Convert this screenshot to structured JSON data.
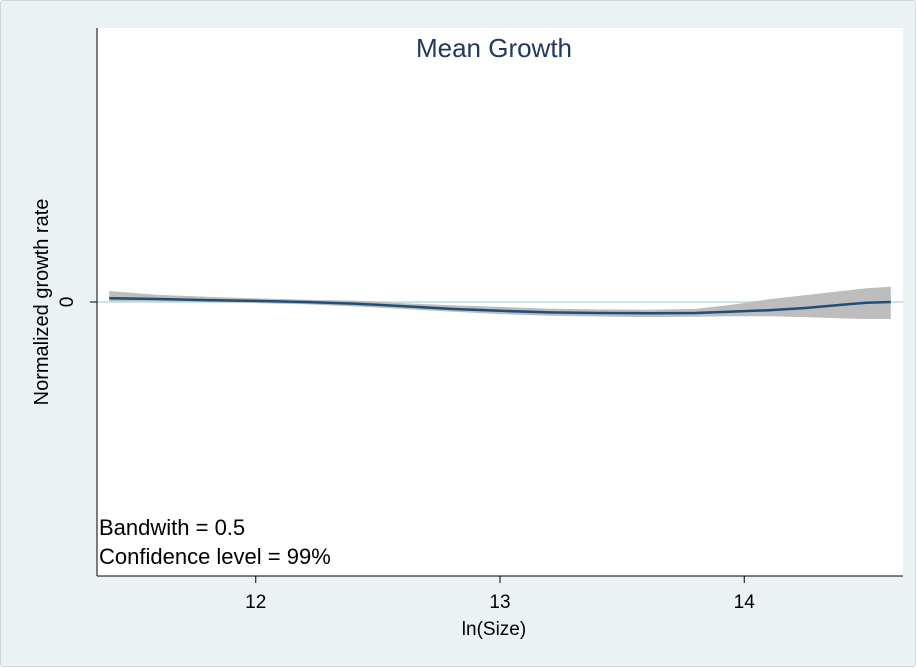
{
  "chart_data": {
    "type": "line",
    "title": "Mean Growth",
    "xlabel": "ln(Size)",
    "ylabel": "Normalized growth rate",
    "xlim": [
      11.35,
      14.65
    ],
    "ylim": [
      -1.0,
      1.0
    ],
    "x_ticks": [
      12,
      13,
      14
    ],
    "y_ticks": [
      0
    ],
    "grid": false,
    "annotations": [
      "Bandwith = 0.5",
      "Confidence level = 99%"
    ],
    "colors": {
      "line": "#1f4e79",
      "band": "#b9b9b9",
      "zero_line": "#cfe3ea",
      "plot_bg": "#ffffff",
      "outer_bg": "#eaf2f3",
      "title": "#1f3864"
    },
    "series": [
      {
        "x": [
          11.4,
          11.6,
          11.8,
          12.0,
          12.2,
          12.4,
          12.6,
          12.8,
          13.0,
          13.2,
          13.4,
          13.6,
          13.8,
          13.95,
          14.1,
          14.25,
          14.4,
          14.5,
          14.6
        ],
        "y": [
          0.014,
          0.011,
          0.007,
          0.004,
          0.0,
          -0.006,
          -0.015,
          -0.025,
          -0.032,
          -0.038,
          -0.04,
          -0.041,
          -0.04,
          -0.035,
          -0.03,
          -0.022,
          -0.01,
          -0.003,
          0.0
        ],
        "ci_lower": [
          0.003,
          0.002,
          0.0,
          -0.004,
          -0.008,
          -0.016,
          -0.025,
          -0.035,
          -0.044,
          -0.05,
          -0.053,
          -0.055,
          -0.054,
          -0.052,
          -0.052,
          -0.055,
          -0.06,
          -0.062,
          -0.062
        ],
        "ci_upper": [
          0.04,
          0.026,
          0.019,
          0.013,
          0.008,
          0.005,
          -0.004,
          -0.012,
          -0.018,
          -0.024,
          -0.027,
          -0.028,
          -0.025,
          -0.01,
          0.01,
          0.025,
          0.04,
          0.05,
          0.056
        ]
      }
    ]
  }
}
